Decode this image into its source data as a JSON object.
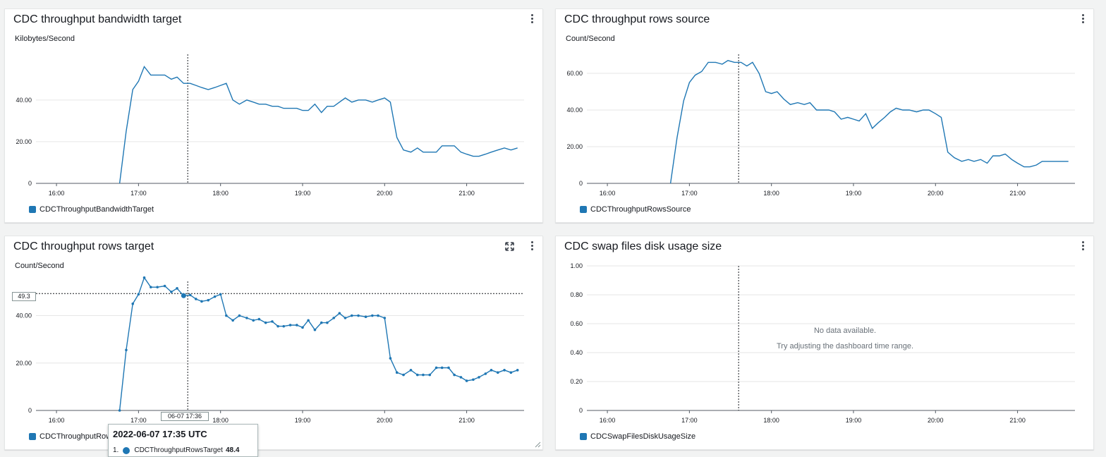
{
  "colors": {
    "series": "#1f77b4",
    "grid": "#e6e6e6",
    "axis": "#545b64"
  },
  "panels": [
    {
      "title": "CDC throughput bandwidth target",
      "unit": "Kilobytes/Second",
      "legend": "CDCThroughputBandwidthTarget",
      "chart_data": {
        "type": "line",
        "ylim": [
          0,
          66
        ],
        "y_ticks": [
          {
            "v": 0,
            "label": "0"
          },
          {
            "v": 20,
            "label": "20.00"
          },
          {
            "v": 40,
            "label": "40.00"
          }
        ],
        "x_ticks": [
          "16:00",
          "17:00",
          "18:00",
          "19:00",
          "20:00",
          "21:00"
        ],
        "x_range_hours": [
          15.75,
          21.7
        ],
        "cursor_x": 17.6,
        "series": [
          {
            "x": [
              16.77,
              16.85,
              16.93,
              17.0,
              17.07,
              17.15,
              17.23,
              17.32,
              17.4,
              17.47,
              17.55,
              17.63,
              17.7,
              17.77,
              17.85,
              17.93,
              18.0,
              18.07,
              18.15,
              18.23,
              18.32,
              18.4,
              18.47,
              18.55,
              18.63,
              18.7,
              18.77,
              18.85,
              18.93,
              19.0,
              19.07,
              19.15,
              19.23,
              19.3,
              19.38,
              19.45,
              19.52,
              19.6,
              19.68,
              19.77,
              19.85,
              19.92,
              20.0,
              20.07,
              20.15,
              20.23,
              20.32,
              20.4,
              20.47,
              20.55,
              20.63,
              20.7,
              20.78,
              20.85,
              20.93,
              21.0,
              21.08,
              21.15,
              21.23,
              21.3,
              21.38,
              21.46,
              21.54,
              21.62
            ],
            "values": [
              0,
              25,
              45,
              49,
              56,
              52,
              52,
              52,
              50,
              51,
              48,
              48,
              47,
              46,
              45,
              46,
              47,
              48,
              40,
              38,
              40,
              39,
              38,
              38,
              37,
              37,
              36,
              36,
              36,
              35,
              35,
              38,
              34,
              37,
              37,
              39,
              41,
              39,
              40,
              40,
              39,
              40,
              41,
              39,
              22,
              16,
              15,
              17,
              15,
              15,
              15,
              18,
              18,
              18,
              15,
              14,
              13,
              13,
              14,
              15,
              16,
              17,
              16,
              17
            ]
          }
        ]
      }
    },
    {
      "title": "CDC throughput rows source",
      "unit": "Count/Second",
      "legend": "CDCThroughputRowsSource",
      "chart_data": {
        "type": "line",
        "ylim": [
          0,
          75
        ],
        "y_ticks": [
          {
            "v": 0,
            "label": "0"
          },
          {
            "v": 20,
            "label": "20.00"
          },
          {
            "v": 40,
            "label": "40.00"
          },
          {
            "v": 60,
            "label": "60.00"
          }
        ],
        "x_ticks": [
          "16:00",
          "17:00",
          "18:00",
          "19:00",
          "20:00",
          "21:00"
        ],
        "x_range_hours": [
          15.75,
          21.7
        ],
        "cursor_x": 17.6,
        "series": [
          {
            "x": [
              16.77,
              16.85,
              16.93,
              17.0,
              17.07,
              17.15,
              17.23,
              17.32,
              17.4,
              17.47,
              17.55,
              17.63,
              17.7,
              17.77,
              17.85,
              17.93,
              18.0,
              18.07,
              18.15,
              18.23,
              18.32,
              18.4,
              18.47,
              18.55,
              18.63,
              18.7,
              18.77,
              18.85,
              18.93,
              19.0,
              19.07,
              19.15,
              19.23,
              19.3,
              19.38,
              19.45,
              19.52,
              19.6,
              19.68,
              19.77,
              19.85,
              19.92,
              20.0,
              20.07,
              20.15,
              20.23,
              20.32,
              20.4,
              20.47,
              20.55,
              20.63,
              20.7,
              20.78,
              20.85,
              20.93,
              21.0,
              21.08,
              21.15,
              21.23,
              21.3,
              21.38,
              21.46,
              21.54,
              21.62
            ],
            "values": [
              0,
              25,
              45,
              55,
              59,
              61,
              66,
              66,
              65,
              67,
              66,
              66,
              64,
              66,
              60,
              50,
              49,
              50,
              46,
              43,
              44,
              43,
              44,
              40,
              40,
              40,
              39,
              35,
              36,
              35,
              34,
              38,
              30,
              33,
              36,
              39,
              41,
              40,
              40,
              39,
              40,
              40,
              38,
              36,
              17,
              14,
              12,
              13,
              12,
              13,
              11,
              15,
              15,
              16,
              13,
              11,
              9,
              9,
              10,
              12,
              12,
              12,
              12,
              12
            ]
          }
        ]
      }
    },
    {
      "title": "CDC throughput rows target",
      "unit": "Count/Second",
      "legend": "CDCThroughputRow",
      "hover_y_label": "49.3",
      "hover_x_label": "06-07 17:36",
      "chart_data": {
        "type": "line",
        "ylim": [
          0,
          58
        ],
        "y_ticks": [
          {
            "v": 0,
            "label": "0"
          },
          {
            "v": 20,
            "label": "20.00"
          },
          {
            "v": 40,
            "label": "40.00"
          }
        ],
        "x_ticks": [
          "16:00",
          "17:00",
          "18:00",
          "19:00",
          "20:00",
          "21:00"
        ],
        "x_range_hours": [
          15.75,
          21.7
        ],
        "cursor_x": 17.6,
        "hover_y": 49.3,
        "series": [
          {
            "x": [
              16.77,
              16.85,
              16.93,
              17.0,
              17.07,
              17.15,
              17.23,
              17.32,
              17.4,
              17.47,
              17.55,
              17.63,
              17.7,
              17.77,
              17.85,
              17.93,
              18.0,
              18.07,
              18.15,
              18.23,
              18.32,
              18.4,
              18.47,
              18.55,
              18.63,
              18.7,
              18.77,
              18.85,
              18.93,
              19.0,
              19.07,
              19.15,
              19.23,
              19.3,
              19.38,
              19.45,
              19.52,
              19.6,
              19.68,
              19.77,
              19.85,
              19.92,
              20.0,
              20.07,
              20.15,
              20.23,
              20.32,
              20.4,
              20.47,
              20.55,
              20.63,
              20.7,
              20.78,
              20.85,
              20.93,
              21.0,
              21.08,
              21.15,
              21.23,
              21.3,
              21.38,
              21.46,
              21.54,
              21.62
            ],
            "values": [
              0,
              25.5,
              45,
              49,
              56,
              52,
              52,
              52.5,
              50,
              51.5,
              48.4,
              48.7,
              47,
              46,
              46.5,
              48,
              49,
              40,
              38,
              40,
              39,
              38,
              38.5,
              37,
              37.5,
              35.5,
              35.5,
              36,
              36,
              35,
              38,
              34,
              37,
              37,
              39,
              41,
              39,
              40,
              40,
              39.5,
              40,
              40,
              39,
              22,
              16,
              15,
              17,
              15,
              15,
              15,
              18,
              18,
              18,
              15,
              14,
              12.5,
              13,
              14,
              15.5,
              17,
              16,
              17,
              16,
              17
            ]
          }
        ]
      }
    },
    {
      "title": "CDC swap files disk usage size",
      "legend": "CDCSwapFilesDiskUsageSize",
      "no_data_line1": "No data available.",
      "no_data_line2": "Try adjusting the dashboard time range.",
      "chart_data": {
        "type": "line",
        "ylim": [
          0,
          1
        ],
        "y_ticks": [
          {
            "v": 0,
            "label": "0"
          },
          {
            "v": 0.2,
            "label": "0.20"
          },
          {
            "v": 0.4,
            "label": "0.40"
          },
          {
            "v": 0.6,
            "label": "0.60"
          },
          {
            "v": 0.8,
            "label": "0.80"
          },
          {
            "v": 1.0,
            "label": "1.00"
          }
        ],
        "x_ticks": [
          "16:00",
          "17:00",
          "18:00",
          "19:00",
          "20:00",
          "21:00"
        ],
        "x_range_hours": [
          15.75,
          21.7
        ],
        "cursor_x": 17.6,
        "series": []
      }
    }
  ],
  "tooltip": {
    "title": "2022-06-07 17:35 UTC",
    "index": "1.",
    "series_name": "CDCThroughputRowsTarget",
    "value": "48.4"
  }
}
